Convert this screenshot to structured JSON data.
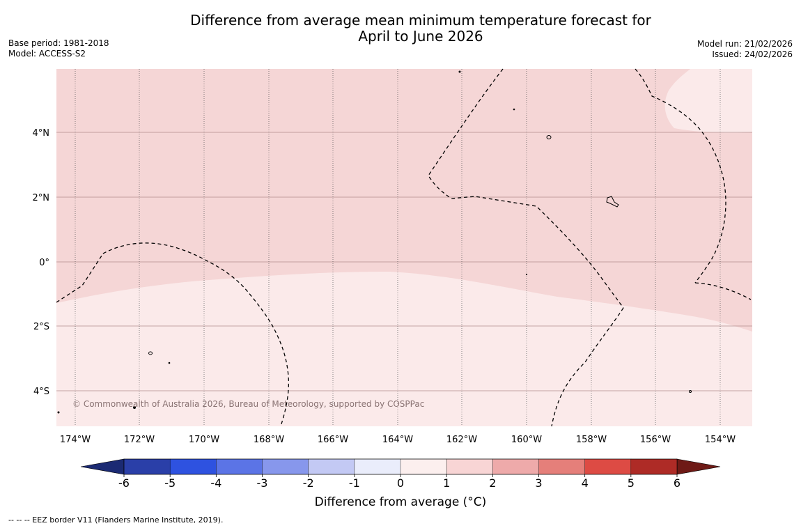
{
  "title": {
    "line1": "Difference from average mean minimum temperature forecast for",
    "line2": "April to June 2026"
  },
  "meta_left": {
    "base_period": "Base period: 1981-2018",
    "model": "Model: ACCESS-S2"
  },
  "meta_right": {
    "model_run": "Model run: 21/02/2026",
    "issued": "Issued: 24/02/2026"
  },
  "map": {
    "lon_labels": [
      "174°W",
      "172°W",
      "170°W",
      "168°W",
      "166°W",
      "164°W",
      "162°W",
      "160°W",
      "158°W",
      "156°W",
      "154°W"
    ],
    "lat_labels": [
      "4°N",
      "2°N",
      "0°",
      "2°S",
      "4°S"
    ],
    "copyright": "© Commonwealth of Australia 2026, Bureau of Meteorology, supported by COSPPac",
    "region_colors": {
      "anomaly_1_to_2": "#f5d6d6",
      "anomaly_0_to_1": "#fbeaea"
    }
  },
  "colorbar": {
    "ticks": [
      "-6",
      "-5",
      "-4",
      "-3",
      "-2",
      "-1",
      "0",
      "1",
      "2",
      "3",
      "4",
      "5",
      "6"
    ],
    "colors": [
      "#2a3fa8",
      "#2e52e0",
      "#5b74e6",
      "#8797ec",
      "#c3c9f4",
      "#eaedfb",
      "#fcefee",
      "#f8d5d5",
      "#eeaaaa",
      "#e57f7a",
      "#dd4b44",
      "#ae2b26"
    ],
    "under_color": "#1b2a73",
    "over_color": "#6e1a16",
    "label": "Difference from average (°C)"
  },
  "footnote": "--  --  -- EEZ border V11 (Flanders Marine Institute, 2019)."
}
